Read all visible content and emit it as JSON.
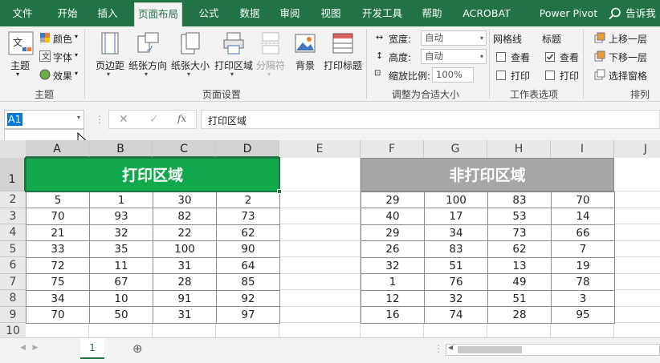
{
  "ribbon_tabs": [
    "文件",
    "开始",
    "插入",
    "页面布局",
    "公式",
    "数据",
    "审阅",
    "视图",
    "开发工具",
    "帮助",
    "ACROBAT",
    "Power Pivot"
  ],
  "search": "告诉我",
  "ribbon": {
    "themes": {
      "label": "主题",
      "button": "主题",
      "colors": "颜色",
      "fonts": "字体",
      "effects": "效果"
    },
    "page_setup": {
      "label": "页面设置",
      "buttons": [
        "页边距",
        "纸张方向",
        "纸张大小",
        "打印区域",
        "分隔符",
        "背景",
        "打印标题"
      ]
    },
    "scale_to_fit": {
      "label": "调整为合适大小",
      "width": {
        "label": "宽度:",
        "value": "自动"
      },
      "height": {
        "label": "高度:",
        "value": "自动"
      },
      "scale": {
        "label": "缩放比例:",
        "value": "100%"
      }
    },
    "sheet_options": {
      "label": "工作表选项",
      "gridlines": {
        "label": "网格线",
        "view": {
          "label": "查看",
          "checked": false
        },
        "print": {
          "label": "打印",
          "checked": false
        }
      },
      "headings": {
        "label": "标题",
        "view": {
          "label": "查看",
          "checked": true
        },
        "print": {
          "label": "打印",
          "checked": false
        }
      }
    },
    "arrange": {
      "label": "排列",
      "buttons": [
        "上移一层",
        "下移一层",
        "选择窗格"
      ]
    }
  },
  "name_box": "A1",
  "formula": "打印区域",
  "columns": [
    "A",
    "B",
    "C",
    "D",
    "E",
    "F",
    "G",
    "H",
    "I",
    "J"
  ],
  "rows": [
    1,
    2,
    3,
    4,
    5,
    6,
    7,
    8,
    9,
    10
  ],
  "print_area": {
    "title": "打印区域",
    "rows": [
      [
        5,
        1,
        30,
        2
      ],
      [
        70,
        93,
        82,
        73
      ],
      [
        21,
        32,
        22,
        62
      ],
      [
        33,
        35,
        100,
        90
      ],
      [
        72,
        11,
        31,
        64
      ],
      [
        75,
        67,
        28,
        85
      ],
      [
        34,
        10,
        91,
        92
      ],
      [
        70,
        50,
        31,
        97
      ]
    ]
  },
  "non_print_area": {
    "title": "非打印区域",
    "rows": [
      [
        29,
        100,
        83,
        70
      ],
      [
        40,
        17,
        53,
        14
      ],
      [
        29,
        34,
        73,
        66
      ],
      [
        26,
        83,
        62,
        7
      ],
      [
        32,
        51,
        13,
        19
      ],
      [
        1,
        76,
        49,
        78
      ],
      [
        12,
        32,
        51,
        3
      ],
      [
        16,
        74,
        28,
        95
      ]
    ]
  },
  "sheet_tabs": [
    "1"
  ]
}
